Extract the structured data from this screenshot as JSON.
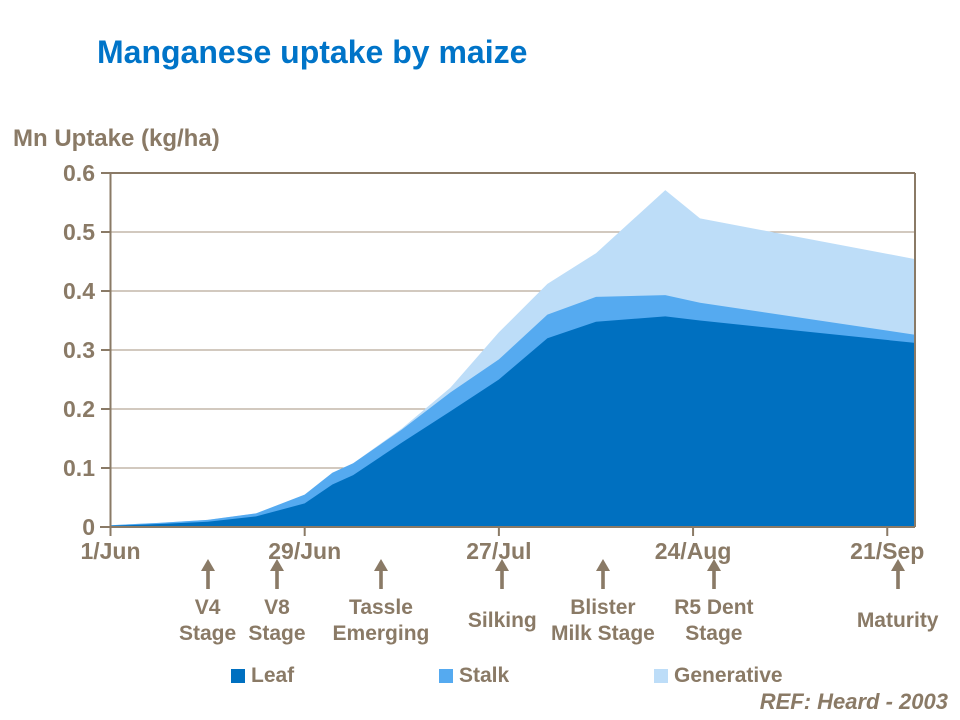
{
  "title": "Manganese uptake by maize",
  "axis_label": "Mn Uptake (kg/ha)",
  "ref_text": "REF:  Heard - 2003",
  "colors": {
    "title": "#0074c8",
    "text": "#8a7a66",
    "grid": "#b8a999",
    "axis": "#8a7a66",
    "leaf": "#0070c0",
    "stalk": "#55aaf0",
    "generative": "#bdddf8"
  },
  "chart_data": {
    "type": "area",
    "stacked": true,
    "title": "Manganese uptake by maize",
    "xlabel": "",
    "ylabel": "Mn Uptake (kg/ha)",
    "ylim": [
      0,
      0.6
    ],
    "y_ticks": [
      0,
      0.1,
      0.2,
      0.3,
      0.4,
      0.5,
      0.6
    ],
    "grid": "horizontal",
    "legend_position": "bottom",
    "x_domain_days": [
      0,
      116
    ],
    "x_tick_days": [
      0,
      28,
      56,
      84,
      112
    ],
    "x_tick_labels": [
      "1/Jun",
      "29/Jun",
      "27/Jul",
      "24/Aug",
      "21/Sep"
    ],
    "x_days": [
      0,
      7,
      14,
      21,
      28,
      32,
      35,
      42,
      49,
      56,
      63,
      70,
      80,
      85,
      116
    ],
    "series": [
      {
        "name": "Leaf",
        "color": "#0070c0",
        "values": [
          0.002,
          0.005,
          0.009,
          0.018,
          0.04,
          0.072,
          0.088,
          0.143,
          0.196,
          0.25,
          0.32,
          0.348,
          0.357,
          0.35,
          0.312
        ]
      },
      {
        "name": "Stalk",
        "color": "#55aaf0",
        "values": [
          0.001,
          0.002,
          0.003,
          0.005,
          0.015,
          0.02,
          0.02,
          0.022,
          0.032,
          0.034,
          0.04,
          0.042,
          0.036,
          0.03,
          0.014
        ]
      },
      {
        "name": "Generative",
        "color": "#bdddf8",
        "values": [
          0,
          0,
          0,
          0,
          0,
          0,
          0,
          0.002,
          0.008,
          0.046,
          0.052,
          0.074,
          0.178,
          0.143,
          0.128
        ]
      }
    ],
    "annotations": [
      {
        "label": "V4\nStage",
        "day": 14
      },
      {
        "label": "V8\nStage",
        "day": 24
      },
      {
        "label": "Tassle\nEmerging",
        "day": 39
      },
      {
        "label": "Silking",
        "day": 56.5
      },
      {
        "label": "Blister\nMilk Stage",
        "day": 71
      },
      {
        "label": "R5 Dent\nStage",
        "day": 87
      },
      {
        "label": "Maturity",
        "day": 113.5
      }
    ]
  }
}
